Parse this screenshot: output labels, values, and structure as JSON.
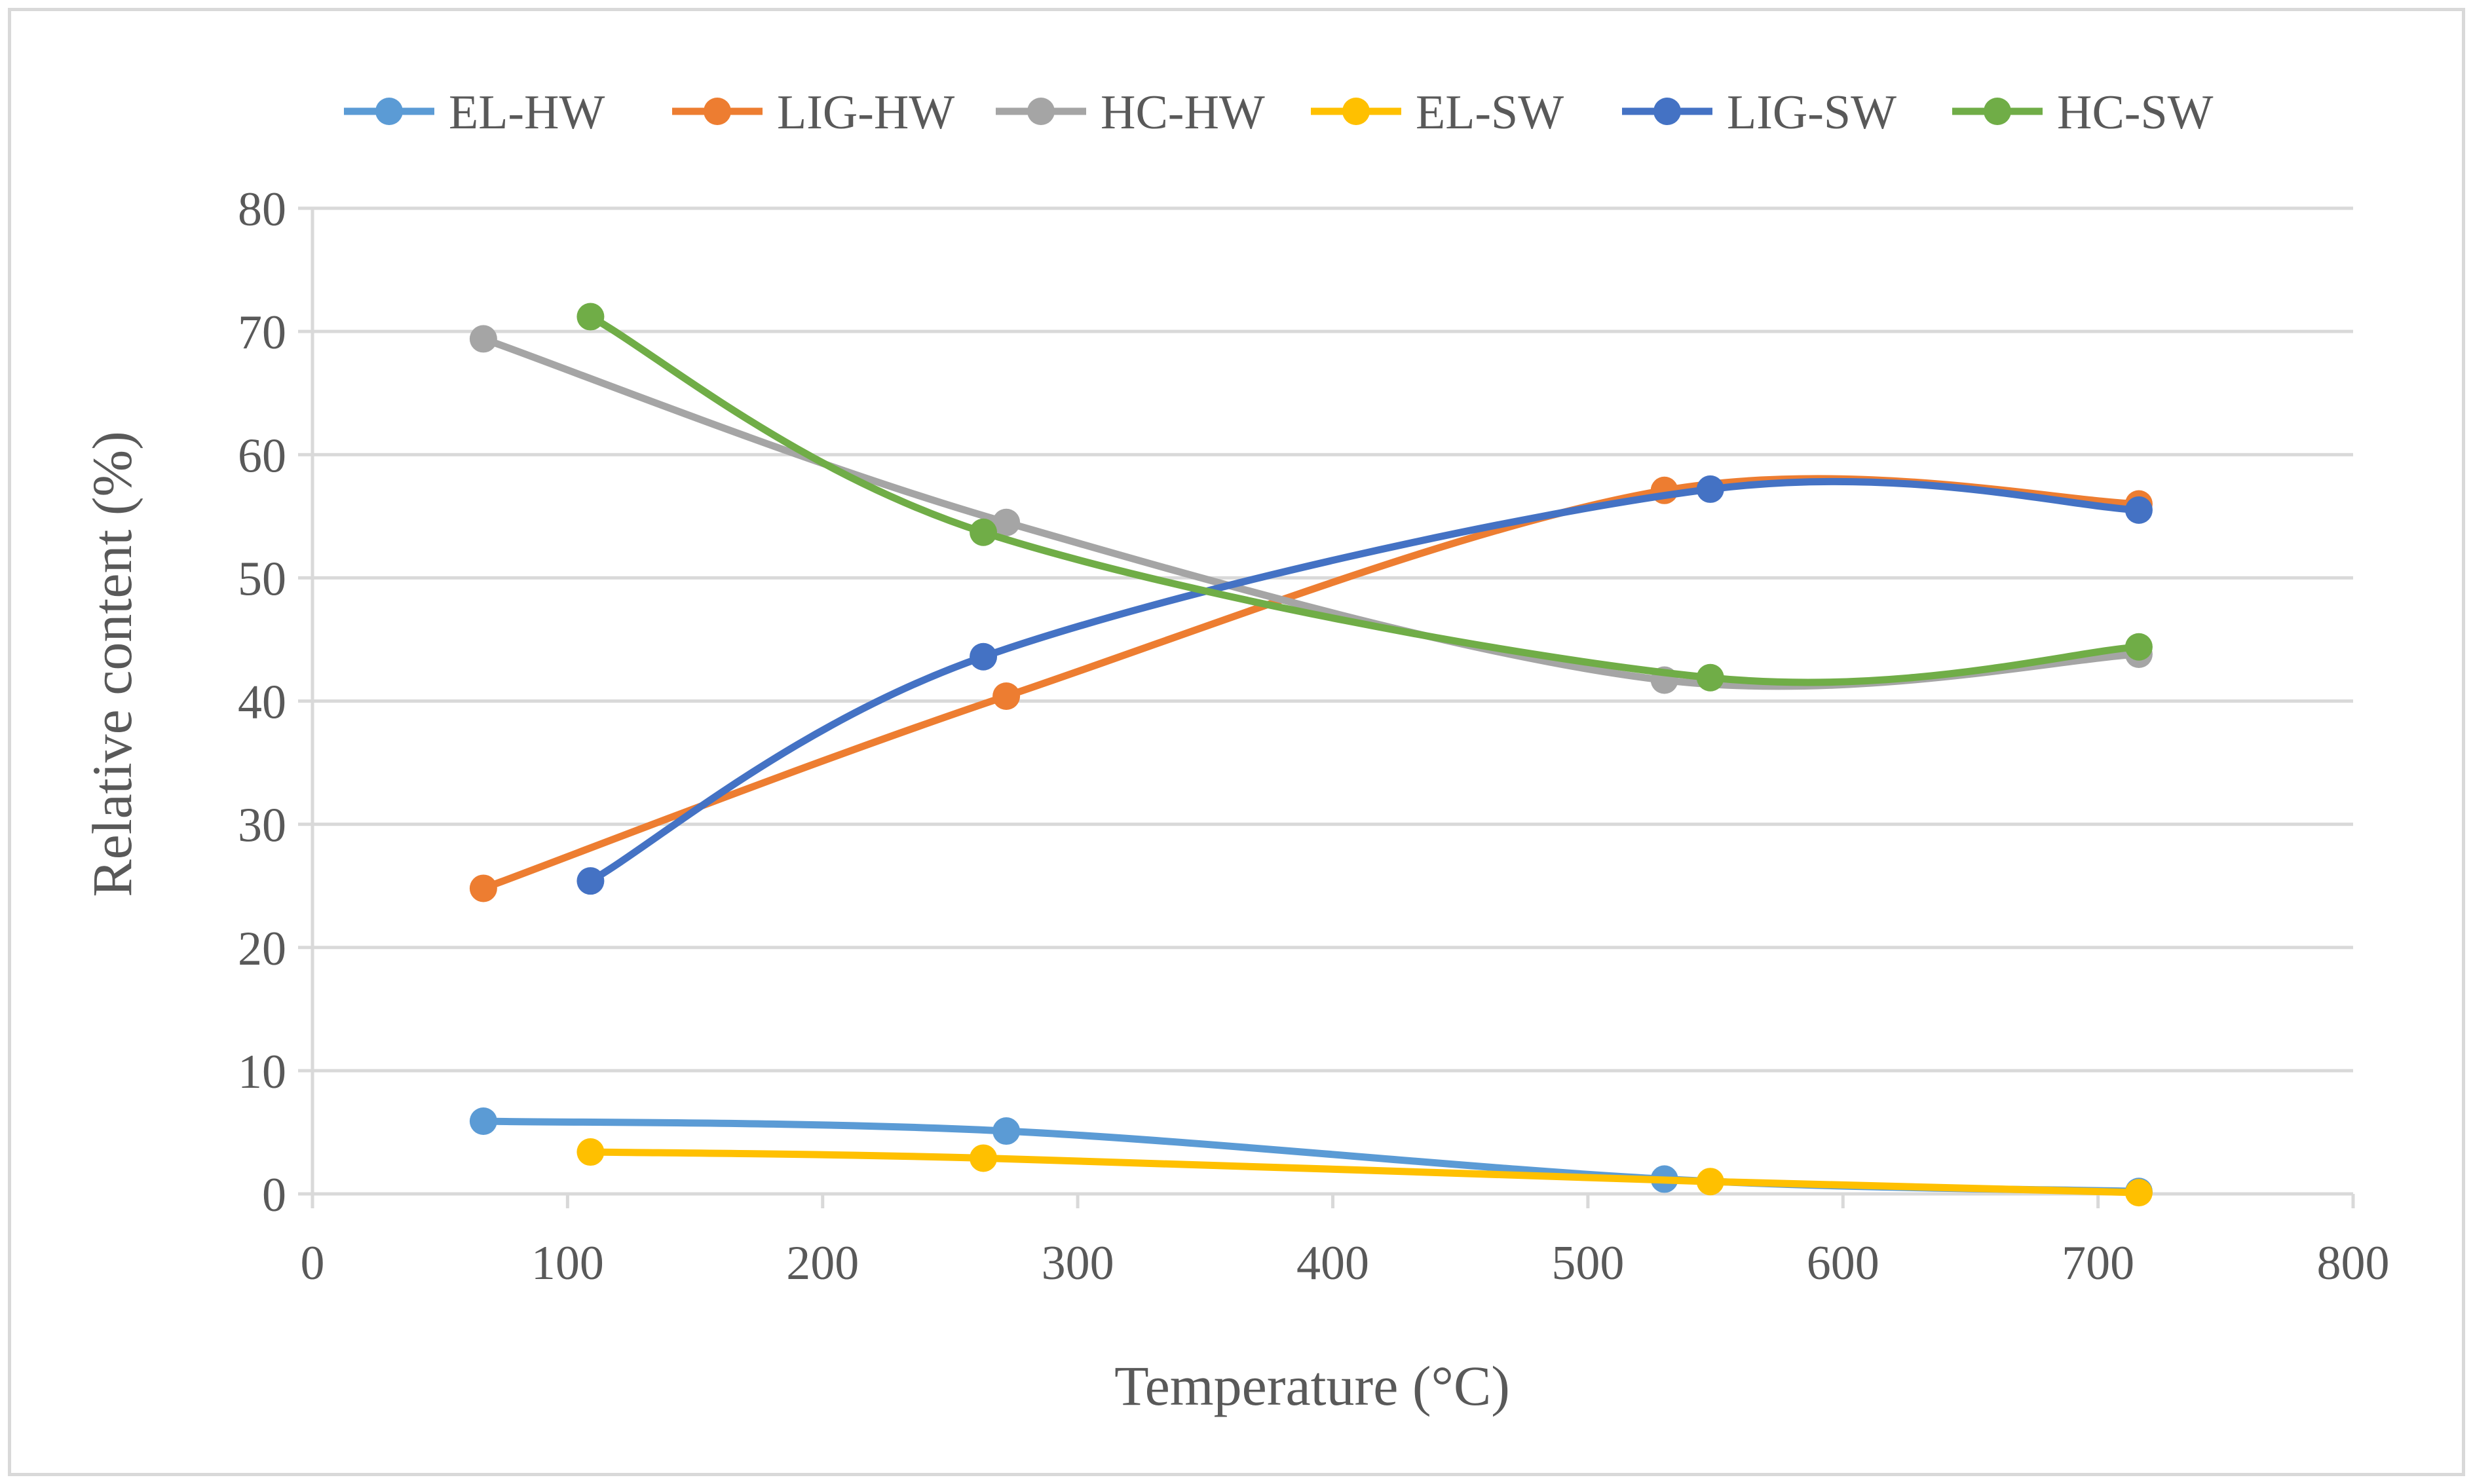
{
  "chart_data": {
    "type": "line",
    "xlabel": "Temperature (°C)",
    "ylabel": "Relative content (%)",
    "xlim": [
      0,
      800
    ],
    "ylim": [
      0,
      80
    ],
    "x_ticks": [
      0,
      100,
      200,
      300,
      400,
      500,
      600,
      700,
      800
    ],
    "y_ticks": [
      0,
      10,
      20,
      30,
      40,
      50,
      60,
      70,
      80
    ],
    "grid": "horizontal",
    "legend_position": "top",
    "smooth": true,
    "series": [
      {
        "name": "EL-HW",
        "color": "#5b9bd5",
        "x": [
          67,
          272,
          530,
          716
        ],
        "y": [
          5.9,
          5.1,
          1.2,
          0.2
        ]
      },
      {
        "name": "LIG-HW",
        "color": "#ed7d31",
        "x": [
          67,
          272,
          530,
          716
        ],
        "y": [
          24.8,
          40.4,
          57.1,
          56.0
        ]
      },
      {
        "name": "HC-HW",
        "color": "#a5a5a5",
        "x": [
          67,
          272,
          530,
          716
        ],
        "y": [
          69.4,
          54.5,
          41.7,
          43.8
        ]
      },
      {
        "name": "EL-SW",
        "color": "#ffc000",
        "x": [
          109,
          263,
          548,
          716
        ],
        "y": [
          3.4,
          2.9,
          1.0,
          0.1
        ]
      },
      {
        "name": "LIG-SW",
        "color": "#4472c4",
        "x": [
          109,
          263,
          548,
          716
        ],
        "y": [
          25.4,
          43.6,
          57.2,
          55.5
        ]
      },
      {
        "name": "HC-SW",
        "color": "#70ad47",
        "x": [
          109,
          263,
          548,
          716
        ],
        "y": [
          71.2,
          53.7,
          41.9,
          44.4
        ]
      }
    ]
  }
}
